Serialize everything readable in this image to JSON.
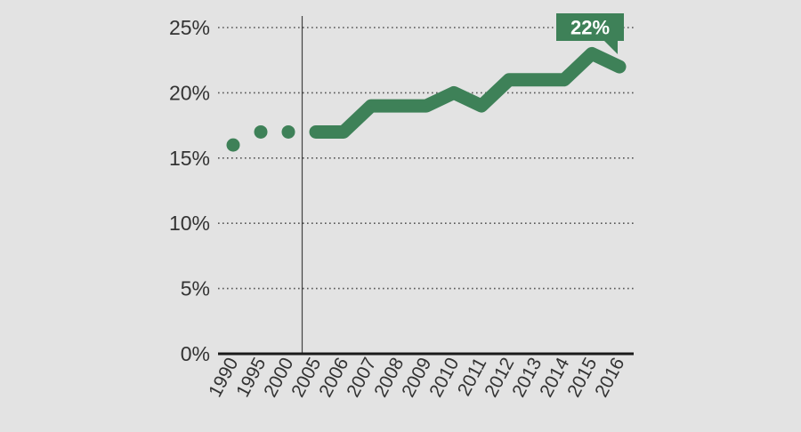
{
  "chart_data": {
    "type": "line",
    "x": [
      "1990",
      "1995",
      "2000",
      "2005",
      "2006",
      "2007",
      "2008",
      "2009",
      "2010",
      "2011",
      "2012",
      "2013",
      "2014",
      "2015",
      "2016"
    ],
    "series": [
      {
        "values": [
          16,
          17,
          17,
          17,
          17,
          19,
          19,
          19,
          20,
          19,
          21,
          21,
          21,
          23,
          22
        ]
      }
    ],
    "marker_only_years": [
      "1990",
      "1995",
      "2000"
    ],
    "y_ticks": [
      "0%",
      "5%",
      "10%",
      "15%",
      "20%",
      "25%"
    ],
    "ylim": [
      0,
      25
    ],
    "grid": "horizontal dotted",
    "callout": {
      "text": "22%",
      "year": "2016"
    },
    "colors": {
      "series": "#3e8158",
      "background": "#e3e3e3",
      "grid": "#555555",
      "text": "#333333",
      "callout_text": "#ffffff"
    }
  }
}
